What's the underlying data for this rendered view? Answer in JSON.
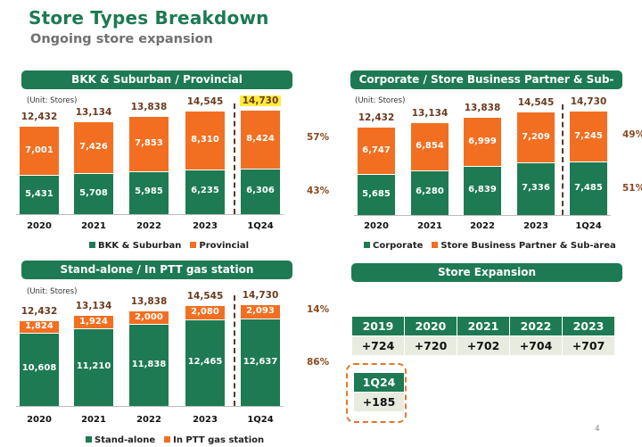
{
  "title": "Store Types Breakdown",
  "subtitle": "Ongoing store expansion",
  "page_number": "4",
  "colors": {
    "green": "#1d7a52",
    "orange": "#f26f21",
    "highlight": "#ffec3d"
  },
  "chart_data": [
    {
      "type": "bar",
      "stacked": true,
      "title": "BKK & Suburban / Provincial",
      "unit_label": "(Unit: Stores)",
      "categories": [
        "2020",
        "2021",
        "2022",
        "2023",
        "1Q24"
      ],
      "totals": [
        "12,432",
        "13,134",
        "13,838",
        "14,545",
        "14,730"
      ],
      "highlight_category": "1Q24",
      "series": [
        {
          "name": "BKK & Suburban",
          "color": "#1d7a52",
          "values": [
            5431,
            5708,
            5985,
            6235,
            6306
          ],
          "labels": [
            "5,431",
            "5,708",
            "5,985",
            "6,235",
            "6,306"
          ],
          "share_latest": "43%"
        },
        {
          "name": "Provincial",
          "color": "#f26f21",
          "values": [
            7001,
            7426,
            7853,
            8310,
            8424
          ],
          "labels": [
            "7,001",
            "7,426",
            "7,853",
            "8,310",
            "8,424"
          ],
          "share_latest": "57%"
        }
      ]
    },
    {
      "type": "bar",
      "stacked": true,
      "title": "Corporate / Store Business Partner & Sub-area",
      "unit_label": "(Unit: Stores)",
      "categories": [
        "2020",
        "2021",
        "2022",
        "2023",
        "1Q24"
      ],
      "totals": [
        "12,432",
        "13,134",
        "13,838",
        "14,545",
        "14,730"
      ],
      "series": [
        {
          "name": "Corporate",
          "color": "#1d7a52",
          "values": [
            5685,
            6280,
            6839,
            7336,
            7485
          ],
          "labels": [
            "5,685",
            "6,280",
            "6,839",
            "7,336",
            "7,485"
          ],
          "share_latest": "51%"
        },
        {
          "name": "Store Business Partner & Sub-area",
          "color": "#f26f21",
          "values": [
            6747,
            6854,
            6999,
            7209,
            7245
          ],
          "labels": [
            "6,747",
            "6,854",
            "6,999",
            "7,209",
            "7,245"
          ],
          "share_latest": "49%"
        }
      ]
    },
    {
      "type": "bar",
      "stacked": true,
      "title": "Stand-alone / In PTT gas station",
      "unit_label": "(Unit: Stores)",
      "categories": [
        "2020",
        "2021",
        "2022",
        "2023",
        "1Q24"
      ],
      "totals": [
        "12,432",
        "13,134",
        "13,838",
        "14,545",
        "14,730"
      ],
      "series": [
        {
          "name": "Stand-alone",
          "color": "#1d7a52",
          "values": [
            10608,
            11210,
            11838,
            12465,
            12637
          ],
          "labels": [
            "10,608",
            "11,210",
            "11,838",
            "12,465",
            "12,637"
          ],
          "share_latest": "86%"
        },
        {
          "name": "In PTT gas station",
          "color": "#f26f21",
          "values": [
            1824,
            1924,
            2000,
            2080,
            2093
          ],
          "labels": [
            "1,824",
            "1,924",
            "2,000",
            "2,080",
            "2,093"
          ],
          "share_latest": "14%"
        }
      ]
    }
  ],
  "store_expansion": {
    "title": "Store Expansion",
    "years": [
      "2019",
      "2020",
      "2021",
      "2022",
      "2023"
    ],
    "values": [
      "+724",
      "+720",
      "+702",
      "+704",
      "+707"
    ],
    "latest": {
      "period": "1Q24",
      "value": "+185"
    }
  }
}
